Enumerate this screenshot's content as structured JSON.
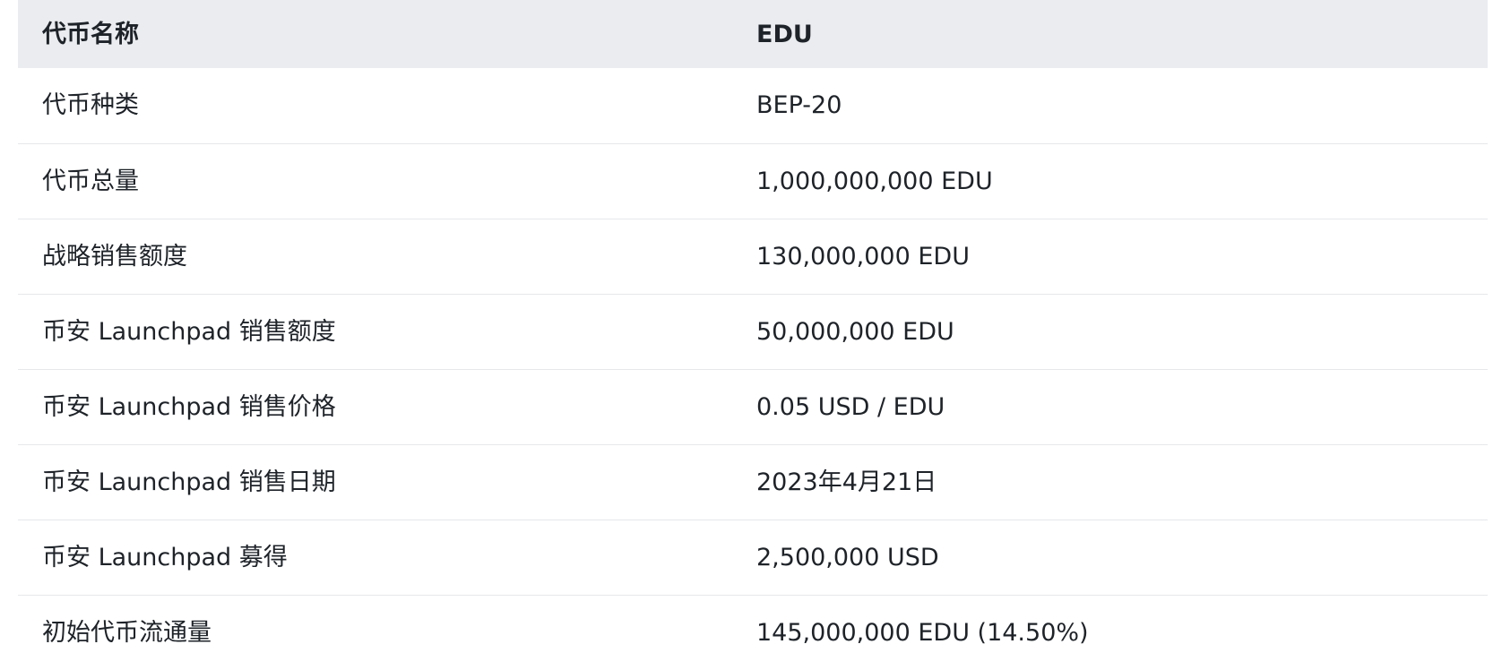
{
  "table": {
    "header": [
      "代币名称",
      "EDU"
    ],
    "rows": [
      [
        "代币种类",
        "BEP-20"
      ],
      [
        "代币总量",
        "1,000,000,000 EDU"
      ],
      [
        "战略销售额度",
        "130,000,000 EDU"
      ],
      [
        "币安 Launchpad 销售额度",
        "50,000,000 EDU"
      ],
      [
        "币安 Launchpad 销售价格",
        "0.05 USD / EDU"
      ],
      [
        "币安 Launchpad 销售日期",
        "2023年4月21日"
      ],
      [
        "币安 Launchpad 募得",
        "2,500,000 USD"
      ],
      [
        "初始代币流通量",
        "145,000,000 EDU (14.50%)"
      ]
    ]
  },
  "colors": {
    "header_bg": "#eaecef",
    "text": "#1e2329",
    "row_divider": "#e6e8ea"
  }
}
